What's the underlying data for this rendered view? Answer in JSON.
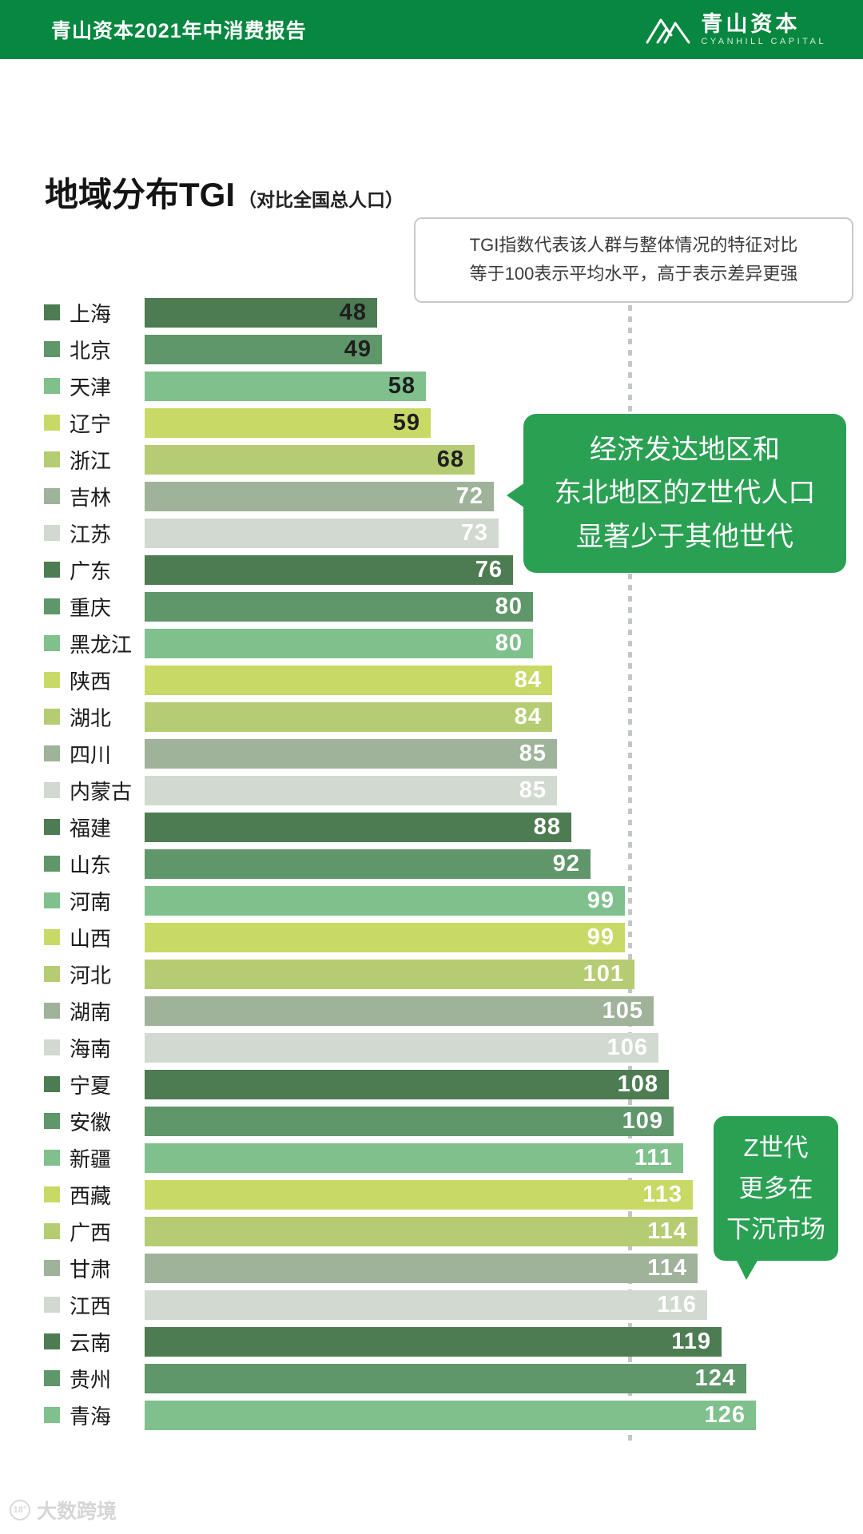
{
  "header": {
    "report_title": "青山资本2021年中消费报告",
    "logo": {
      "name": "青山资本",
      "subtitle": "CYANHILL CAPITAL"
    }
  },
  "page": {
    "title": "地域分布TGI",
    "title_suffix": "（对比全国总人口）"
  },
  "tooltip": {
    "line1": "TGI指数代表该人群与整体情况的特征对比",
    "line2": "等于100表示平均水平，高于表示差异更强"
  },
  "annotations": {
    "bubble1": {
      "lines": [
        "经济发达地区和",
        "东北地区的Z世代人口",
        "显著少于其他世代"
      ]
    },
    "bubble2": {
      "lines": [
        "Z世代",
        "更多在",
        "下沉市场"
      ]
    }
  },
  "watermark": {
    "icon_text": "18°",
    "label": "大数跨境"
  },
  "colors": {
    "header_green": "#07873f",
    "bubble_green": "#2aa053",
    "reference_line_gray": "#c4c8c4",
    "palette": [
      "#4d7c52",
      "#5f966a",
      "#7fc08d",
      "#c9d966",
      "#b6cc72",
      "#9fb29a",
      "#d2d9d0"
    ]
  },
  "chart_data": {
    "type": "bar",
    "orientation": "horizontal",
    "title": "地域分布TGI（对比全国总人口）",
    "xlabel": "",
    "ylabel": "",
    "xlim": [
      0,
      130
    ],
    "reference_line": 100,
    "grid": false,
    "legend": "none",
    "value_labels": "inside-end",
    "dark_value_label_rows": 5,
    "categories": [
      "上海",
      "北京",
      "天津",
      "辽宁",
      "浙江",
      "吉林",
      "江苏",
      "广东",
      "重庆",
      "黑龙江",
      "陕西",
      "湖北",
      "四川",
      "内蒙古",
      "福建",
      "山东",
      "河南",
      "山西",
      "河北",
      "湖南",
      "海南",
      "宁夏",
      "安徽",
      "新疆",
      "西藏",
      "广西",
      "甘肃",
      "江西",
      "云南",
      "贵州",
      "青海"
    ],
    "values": [
      48,
      49,
      58,
      59,
      68,
      72,
      73,
      76,
      80,
      80,
      84,
      84,
      85,
      85,
      88,
      92,
      99,
      99,
      101,
      105,
      106,
      108,
      109,
      111,
      113,
      114,
      114,
      116,
      119,
      124,
      126
    ]
  }
}
